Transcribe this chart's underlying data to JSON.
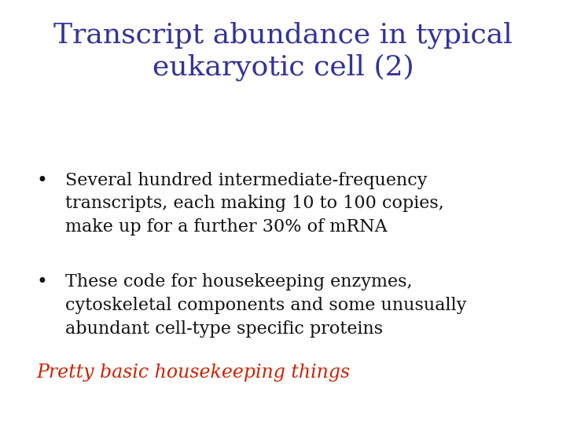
{
  "title_line1": "Transcript abundance in typical",
  "title_line2": "eukaryotic cell (2)",
  "title_color": "#333399",
  "background_color": "#ffffff",
  "bullet1_line1": "Several hundred intermediate-frequency",
  "bullet1_line2": "transcripts, each making 10 to 100 copies,",
  "bullet1_line3": "make up for a further 30% of mRNA",
  "bullet2_line1": "These code for housekeeping enzymes,",
  "bullet2_line2": "cytoskeletal components and some unusually",
  "bullet2_line3": "abundant cell-type specific proteins",
  "footer": "Pretty basic housekeeping things",
  "footer_color": "#cc2200",
  "bullet_color": "#111111",
  "bullet_symbol": "•",
  "title_fontsize": 26,
  "body_fontsize": 16,
  "footer_fontsize": 17
}
